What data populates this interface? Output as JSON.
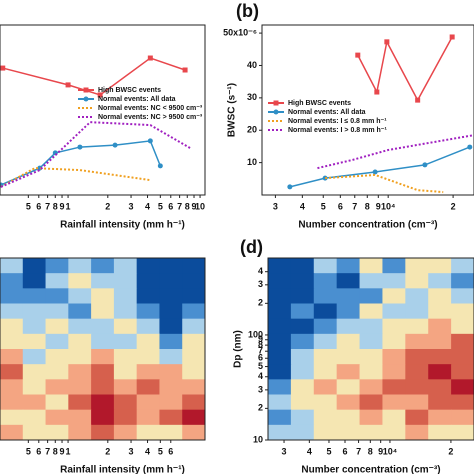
{
  "chart_data": [
    {
      "type": "line",
      "xscale": "log",
      "xlabel": "Rainfall intensity (mm h⁻¹)",
      "xlim": [
        0.305,
        10.9
      ],
      "ylim": [
        0,
        52.5
      ],
      "xticks": [
        {
          "value": 0.5,
          "label": "5"
        },
        {
          "value": 0.6,
          "label": "6"
        },
        {
          "value": 0.7,
          "label": "7"
        },
        {
          "value": 0.8,
          "label": "8"
        },
        {
          "value": 0.9,
          "label": "9"
        },
        1,
        2,
        3,
        4,
        5,
        6,
        7,
        8,
        9,
        10
      ],
      "series": [
        {
          "name": "High BWSC events",
          "color": "#e8474c",
          "linestyle": "solid",
          "marker": "square",
          "x": [
            0.32,
            1,
            1.75,
            4.2,
            7.7
          ],
          "values": [
            39.2,
            34,
            30.9,
            42.3,
            38.6
          ]
        },
        {
          "name": "Normal events: All data",
          "color": "#2f8fc6",
          "linestyle": "solid",
          "marker": "circle",
          "x": [
            0.31,
            0.61,
            0.8,
            1.23,
            2.27,
            4.2,
            5
          ],
          "values": [
            3.1,
            8.3,
            13,
            14.8,
            15.4,
            16.7,
            9
          ]
        },
        {
          "name": "Normal events: NC < 9500 cm⁻³",
          "color": "#f0a020",
          "linestyle": "dotted",
          "marker": "none",
          "x": [
            0.31,
            0.56,
            1.23,
            4.2
          ],
          "values": [
            2.5,
            8.3,
            7.7,
            4.6
          ]
        },
        {
          "name": "Normal events: NC > 9500 cm⁻³",
          "color": "#a020c0",
          "linestyle": "dotted",
          "marker": "none",
          "x": [
            0.31,
            0.61,
            1.47,
            4.2,
            8.4
          ],
          "values": [
            2.5,
            7.7,
            22.5,
            21.6,
            14.5
          ]
        }
      ]
    },
    {
      "type": "line",
      "panel": "(b)",
      "xscale": "log",
      "xlabel": "Number concentration (cm⁻³)",
      "ylabel": "BWSC (s⁻¹)",
      "xlim": [
        2600,
        25000
      ],
      "ylim": [
        0,
        52.5
      ],
      "xticks": [
        {
          "value": 3000,
          "label": "3"
        },
        {
          "value": 4000,
          "label": "4"
        },
        {
          "value": 5000,
          "label": "5"
        },
        {
          "value": 6000,
          "label": "6"
        },
        {
          "value": 7000,
          "label": "7"
        },
        {
          "value": 8000,
          "label": "8"
        },
        {
          "value": 9000,
          "label": "9"
        },
        {
          "value": 10000,
          "label": "10⁴"
        },
        {
          "value": 20000,
          "label": "2"
        }
      ],
      "yticks": [
        10,
        20,
        30,
        40,
        {
          "value": 50,
          "label": "50x10⁻⁶"
        }
      ],
      "series": [
        {
          "name": "High BWSC events",
          "color": "#e8474c",
          "linestyle": "solid",
          "marker": "square",
          "x": [
            7230,
            8860,
            9860,
            13700,
            19800
          ],
          "values": [
            43.2,
            31.8,
            47.3,
            29.3,
            48.8
          ]
        },
        {
          "name": "Normal events: All data",
          "color": "#2f8fc6",
          "linestyle": "solid",
          "marker": "circle",
          "x": [
            3500,
            5100,
            8700,
            14800,
            23900
          ],
          "values": [
            2.5,
            5.2,
            7.1,
            9.3,
            14.8
          ]
        },
        {
          "name": "Normal events: I ≤ 0.8 mm h⁻¹",
          "color": "#f0a020",
          "linestyle": "dotted",
          "marker": "none",
          "x": [
            5100,
            8700,
            13700,
            18000
          ],
          "values": [
            5.2,
            6.2,
            1.5,
            0.9
          ]
        },
        {
          "name": "Normal events: I > 0.8 mm h⁻¹",
          "color": "#a020c0",
          "linestyle": "dotted",
          "marker": "none",
          "x": [
            4700,
            6800,
            10000,
            25000
          ],
          "values": [
            8.3,
            10.8,
            13.9,
            18.5
          ]
        }
      ]
    },
    {
      "type": "heatmap",
      "xscale": "log",
      "xlabel": "Rainfall intensity (mm h⁻¹)",
      "xlim": [
        0.305,
        10.9
      ],
      "xticks": [
        {
          "value": 0.5,
          "label": "5"
        },
        {
          "value": 0.6,
          "label": "6"
        },
        {
          "value": 0.7,
          "label": "7"
        },
        {
          "value": 0.8,
          "label": "8"
        },
        {
          "value": 0.9,
          "label": "9"
        },
        1,
        {
          "value": 2,
          "label": "2"
        },
        {
          "value": 3,
          "label": "3"
        },
        {
          "value": 4,
          "label": "4"
        },
        {
          "value": 5,
          "label": "5"
        },
        {
          "value": 6,
          "label": "6"
        }
      ],
      "colorscale": [
        "#0b4c9c",
        "#4a8fd0",
        "#a9d0ea",
        "#f5e6b2",
        "#f4a582",
        "#d6604d",
        "#b2182b"
      ],
      "values": [
        [
          2,
          0,
          1,
          2,
          1,
          2,
          0,
          0,
          0
        ],
        [
          1,
          0,
          2,
          3,
          2,
          2,
          0,
          0,
          0
        ],
        [
          1,
          1,
          1,
          2,
          3,
          2,
          0,
          0,
          0
        ],
        [
          2,
          2,
          2,
          1,
          3,
          2,
          1,
          0,
          1
        ],
        [
          3,
          2,
          3,
          2,
          2,
          3,
          2,
          0,
          2
        ],
        [
          3,
          3,
          2,
          3,
          2,
          2,
          3,
          1,
          3
        ],
        [
          4,
          2,
          3,
          3,
          4,
          3,
          3,
          2,
          3
        ],
        [
          5,
          3,
          3,
          4,
          5,
          3,
          4,
          4,
          3
        ],
        [
          4,
          3,
          4,
          4,
          5,
          4,
          5,
          4,
          4
        ],
        [
          4,
          4,
          3,
          5,
          6,
          5,
          4,
          4,
          5
        ],
        [
          3,
          3,
          4,
          4,
          6,
          5,
          4,
          5,
          6
        ],
        [
          4,
          3,
          3,
          4,
          5,
          4,
          3,
          3,
          4
        ]
      ]
    },
    {
      "type": "heatmap",
      "panel": "(d)",
      "xscale": "log",
      "yscale": "log",
      "xlabel": "Number concentration (cm⁻³)",
      "ylabel": "Dp (nm)",
      "xlim": [
        2500,
        26000
      ],
      "ylim": [
        10,
        540
      ],
      "xticks": [
        {
          "value": 3000,
          "label": "3"
        },
        {
          "value": 4000,
          "label": "4"
        },
        {
          "value": 5000,
          "label": "5"
        },
        {
          "value": 6000,
          "label": "6"
        },
        {
          "value": 7000,
          "label": "7"
        },
        {
          "value": 8000,
          "label": "8"
        },
        {
          "value": 9000,
          "label": "9"
        },
        {
          "value": 10000,
          "label": "10⁴"
        },
        {
          "value": 20000,
          "label": "2"
        }
      ],
      "yticks": [
        {
          "value": 400,
          "label": "4"
        },
        {
          "value": 300,
          "label": "3"
        },
        {
          "value": 200,
          "label": "2"
        },
        100,
        {
          "value": 90,
          "label": "9"
        },
        {
          "value": 80,
          "label": "8"
        },
        {
          "value": 70,
          "label": "7"
        },
        {
          "value": 60,
          "label": "6"
        },
        {
          "value": 50,
          "label": "5"
        },
        {
          "value": 40,
          "label": "4"
        },
        {
          "value": 30,
          "label": "3"
        },
        {
          "value": 20,
          "label": "2"
        },
        10
      ],
      "colorscale": [
        "#0b4c9c",
        "#4a8fd0",
        "#a9d0ea",
        "#f5e6b2",
        "#f4a582",
        "#d6604d",
        "#b2182b"
      ],
      "values": [
        [
          0,
          0,
          2,
          1,
          3,
          1,
          3,
          3,
          2
        ],
        [
          0,
          0,
          1,
          0,
          2,
          2,
          3,
          2,
          1
        ],
        [
          0,
          0,
          1,
          1,
          1,
          3,
          2,
          3,
          2
        ],
        [
          0,
          1,
          0,
          1,
          3,
          2,
          2,
          3,
          3
        ],
        [
          0,
          0,
          1,
          2,
          2,
          3,
          3,
          4,
          3
        ],
        [
          0,
          1,
          2,
          3,
          2,
          3,
          4,
          4,
          5
        ],
        [
          0,
          2,
          3,
          3,
          3,
          4,
          5,
          5,
          5
        ],
        [
          0,
          2,
          3,
          4,
          3,
          4,
          5,
          6,
          5
        ],
        [
          1,
          3,
          4,
          3,
          4,
          5,
          5,
          5,
          6
        ],
        [
          2,
          3,
          3,
          4,
          5,
          4,
          4,
          5,
          5
        ],
        [
          1,
          2,
          3,
          3,
          4,
          3,
          5,
          4,
          4
        ],
        [
          2,
          2,
          3,
          3,
          3,
          3,
          4,
          3,
          3
        ]
      ]
    }
  ]
}
